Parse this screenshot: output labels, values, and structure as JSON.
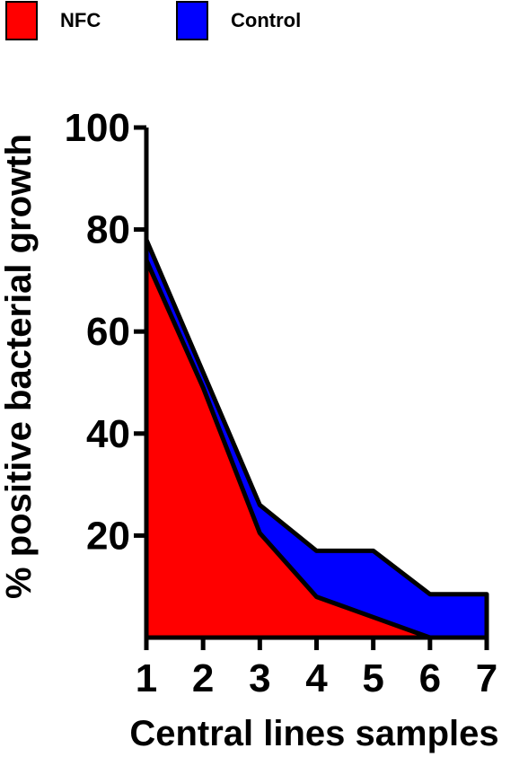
{
  "chart_data": {
    "type": "area",
    "xlabel": "Central lines samples",
    "ylabel": "% positive bacterial growth",
    "x": [
      1,
      2,
      3,
      4,
      5,
      6,
      7
    ],
    "xlim": [
      1,
      7
    ],
    "ylim": [
      0,
      100
    ],
    "yticks": [
      20,
      40,
      60,
      80,
      100
    ],
    "xticks": [
      1,
      2,
      3,
      4,
      5,
      6,
      7
    ],
    "grid": false,
    "legend_position": "top-left",
    "series": [
      {
        "name": "Control",
        "color": "#0000ff",
        "values": [
          78,
          52,
          26,
          17,
          17,
          8.5,
          8.5
        ]
      },
      {
        "name": "NFC",
        "color": "#ff0000",
        "values": [
          74,
          49,
          20.5,
          8,
          4,
          0,
          0
        ]
      }
    ]
  }
}
